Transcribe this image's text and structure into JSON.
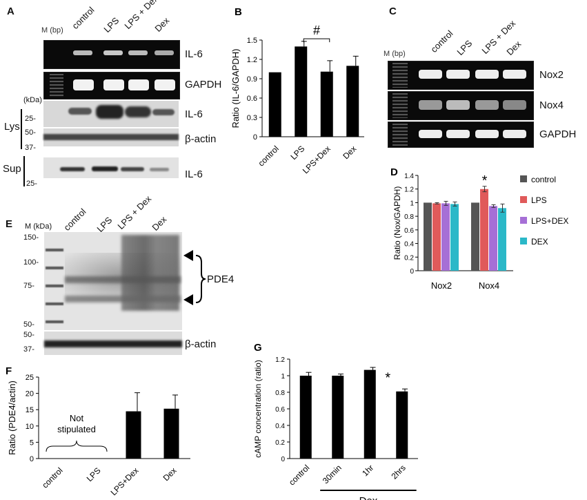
{
  "panelA": {
    "letter": "A",
    "marker_label": "M (bp)",
    "lanes": [
      "control",
      "LPS",
      "LPS + Dex",
      "Dex"
    ],
    "gel_labels": [
      "IL-6",
      "GAPDH"
    ],
    "kda_label": "(kDa)",
    "lys_label": "Lys",
    "sup_label": "Sup",
    "lys_markers": [
      "25-",
      "50-",
      "37-"
    ],
    "lys_bands": [
      "IL-6",
      "β-actin"
    ],
    "sup_marker": "25-",
    "sup_band": "IL-6"
  },
  "panelC": {
    "letter": "C",
    "marker_label": "M (bp)",
    "lanes": [
      "control",
      "LPS",
      "LPS + Dex",
      "Dex"
    ],
    "gel_labels": [
      "Nox2",
      "Nox4",
      "GAPDH"
    ]
  },
  "panelE": {
    "letter": "E",
    "marker_label": "M (kDa)",
    "lanes": [
      "control",
      "LPS",
      "LPS + Dex",
      "Dex"
    ],
    "markers": [
      "150-",
      "100-",
      "75-",
      "50-"
    ],
    "actin_markers": [
      "50-",
      "37-"
    ],
    "band_label": "PDE4",
    "actin_label": "β-actin"
  },
  "chart_data": [
    {
      "panel": "B",
      "type": "bar",
      "ylabel": "Ratio (IL-6/GAPDH)",
      "categories": [
        "control",
        "LPS",
        "LPS+Dex",
        "Dex"
      ],
      "values": [
        1.0,
        1.4,
        1.01,
        1.1
      ],
      "errors": [
        0.0,
        0.08,
        0.17,
        0.15
      ],
      "ylim": [
        0,
        1.5
      ],
      "yticks": [
        "0",
        "0.3",
        "0.6",
        "0.9",
        "1.2",
        "1.5"
      ],
      "annotation": "#"
    },
    {
      "panel": "D",
      "type": "bar",
      "ylabel": "Ratio (Nox/GAPDH)",
      "categories": [
        "Nox2",
        "Nox4"
      ],
      "series": [
        {
          "name": "control",
          "color": "#555555",
          "values": [
            1.0,
            1.0
          ],
          "errors": [
            0.0,
            0.0
          ]
        },
        {
          "name": "LPS",
          "color": "#e05a5a",
          "values": [
            0.99,
            1.2
          ],
          "errors": [
            0.01,
            0.04
          ]
        },
        {
          "name": "LPS+DEX",
          "color": "#a66fd6",
          "values": [
            0.99,
            0.95
          ],
          "errors": [
            0.03,
            0.02
          ]
        },
        {
          "name": "DEX",
          "color": "#2bb8c8",
          "values": [
            0.98,
            0.92
          ],
          "errors": [
            0.03,
            0.06
          ]
        }
      ],
      "ylim": [
        0,
        1.4
      ],
      "yticks": [
        "0",
        "0.2",
        "0.4",
        "0.6",
        "0.8",
        "1",
        "1.2",
        "1.4"
      ],
      "annotation": "*"
    },
    {
      "panel": "F",
      "type": "bar",
      "ylabel": "Ratio (PDE4/actin)",
      "categories": [
        "control",
        "LPS",
        "LPS+Dex",
        "Dex"
      ],
      "values": [
        0,
        0,
        14.5,
        15.3
      ],
      "errors": [
        0,
        0,
        5.7,
        4.2
      ],
      "ylim": [
        0,
        25
      ],
      "yticks": [
        "0",
        "5",
        "10",
        "15",
        "20",
        "25"
      ],
      "annotation": "Not stipulated"
    },
    {
      "panel": "G",
      "type": "bar",
      "ylabel": "cAMP concentration (ratio)",
      "categories": [
        "control",
        "30min",
        "1hr",
        "2hrs"
      ],
      "values": [
        1.0,
        1.0,
        1.07,
        0.81
      ],
      "errors": [
        0.04,
        0.02,
        0.03,
        0.03
      ],
      "ylim": [
        0,
        1.2
      ],
      "yticks": [
        "0",
        "0.2",
        "0.4",
        "0.6",
        "0.8",
        "1",
        "1.2"
      ],
      "group_label": "Dex",
      "annotation": "*"
    }
  ]
}
